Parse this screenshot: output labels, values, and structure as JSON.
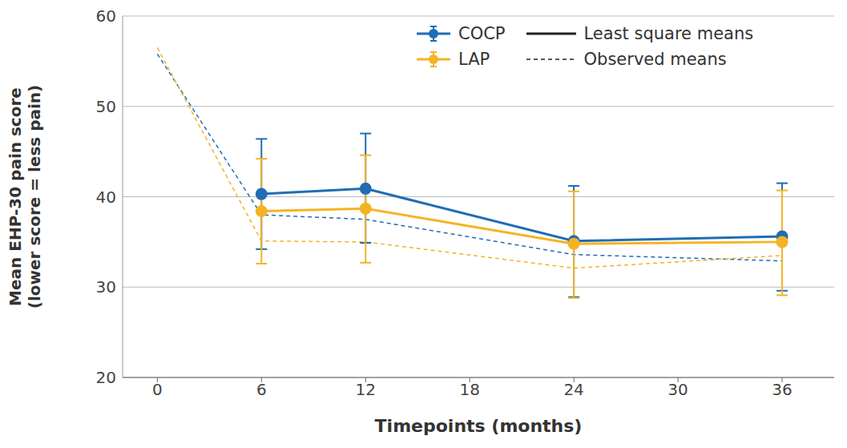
{
  "chart_data": {
    "type": "line",
    "x_label": "Timepoints (months)",
    "y_label": [
      "Mean EHP-30 pain score",
      "(lower score = less pain)"
    ],
    "x": [
      0,
      6,
      12,
      24,
      36
    ],
    "xlim": [
      -2,
      39
    ],
    "xticks": [
      0,
      6,
      12,
      18,
      24,
      30,
      36
    ],
    "ylim": [
      20,
      60
    ],
    "yticks": [
      20,
      30,
      40,
      50,
      60
    ],
    "grid": true,
    "legend": "top right",
    "series": [
      {
        "name": "COCP",
        "color": "#1f6db5",
        "values": [
          null,
          40.3,
          40.9,
          35.1,
          35.6
        ],
        "error_low": [
          null,
          34.2,
          34.9,
          28.9,
          29.6
        ],
        "error_high": [
          null,
          46.4,
          47.0,
          41.2,
          41.5
        ],
        "observed_means": [
          55.8,
          38.0,
          37.5,
          33.6,
          32.9
        ]
      },
      {
        "name": "LAP",
        "color": "#f5b324",
        "values": [
          null,
          38.4,
          38.7,
          34.8,
          35.0
        ],
        "error_low": [
          null,
          32.6,
          32.7,
          28.8,
          29.1
        ],
        "error_high": [
          null,
          44.2,
          44.6,
          40.6,
          40.7
        ],
        "observed_means": [
          56.5,
          35.1,
          35.0,
          32.1,
          33.5
        ]
      }
    ],
    "line_legend": [
      {
        "name": "Least square means",
        "line_style": "solid"
      },
      {
        "name": "Observed means",
        "line_style": "dashed"
      }
    ]
  }
}
